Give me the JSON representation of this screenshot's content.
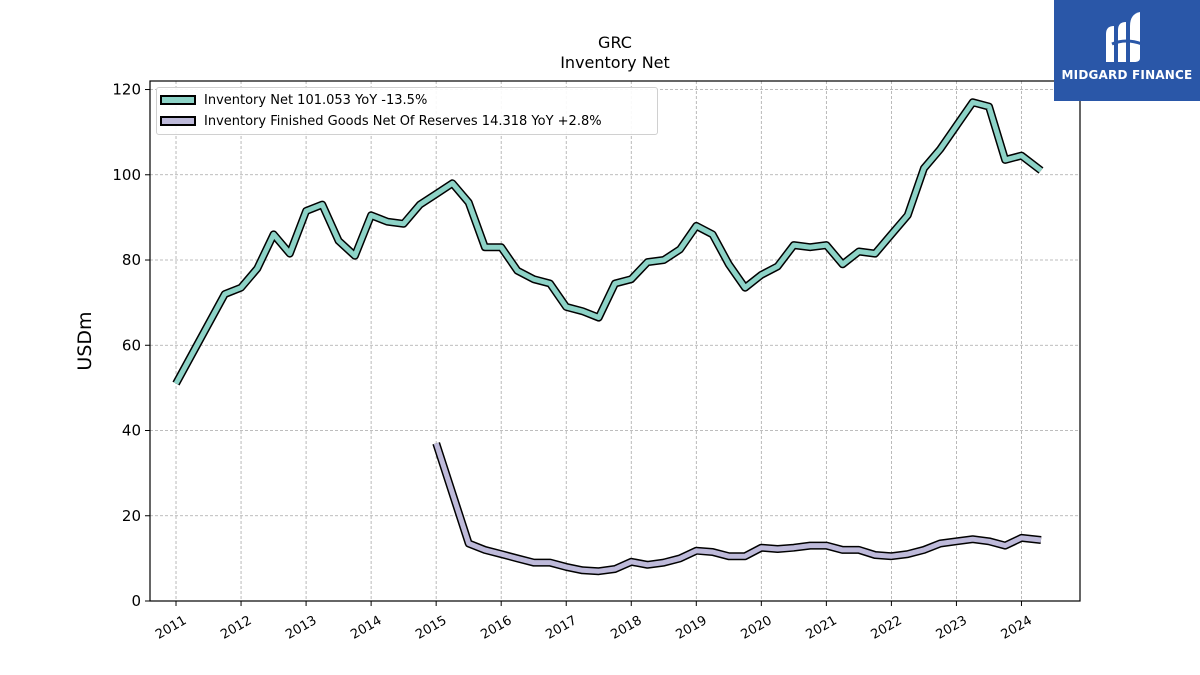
{
  "chart_data": {
    "type": "line",
    "title": "GRC",
    "subtitle": "Inventory Net",
    "ylabel": "USDm",
    "xlabel": "",
    "ylim": [
      0,
      122
    ],
    "yticks": [
      0,
      20,
      40,
      60,
      80,
      100,
      120
    ],
    "xlim": [
      2010.6,
      2024.9
    ],
    "xticks": [
      "2011",
      "2012",
      "2013",
      "2014",
      "2015",
      "2016",
      "2017",
      "2018",
      "2019",
      "2020",
      "2021",
      "2022",
      "2023",
      "2024"
    ],
    "grid": true,
    "legend_position": "top-left",
    "series": [
      {
        "name": "Inventory Net  101.053 YoY -13.5%",
        "color": "#8dd3c7",
        "x": [
          2011.0,
          2011.75,
          2012.0,
          2012.25,
          2012.5,
          2012.75,
          2013.0,
          2013.25,
          2013.5,
          2013.75,
          2014.0,
          2014.25,
          2014.5,
          2014.75,
          2015.0,
          2015.25,
          2015.5,
          2015.75,
          2016.0,
          2016.25,
          2016.5,
          2016.75,
          2017.0,
          2017.25,
          2017.5,
          2017.75,
          2018.0,
          2018.25,
          2018.5,
          2018.75,
          2019.0,
          2019.25,
          2019.5,
          2019.75,
          2020.0,
          2020.25,
          2020.5,
          2020.75,
          2021.0,
          2021.25,
          2021.5,
          2021.75,
          2022.0,
          2022.25,
          2022.5,
          2022.75,
          2023.0,
          2023.25,
          2023.5,
          2023.75,
          2024.0,
          2024.3
        ],
        "values": [
          51,
          72,
          73.5,
          78,
          86,
          81.5,
          91.5,
          93,
          84.5,
          81,
          90.5,
          89,
          88.5,
          93,
          95.5,
          98,
          93.5,
          83,
          83,
          77.5,
          75.5,
          74.5,
          69,
          68,
          66.5,
          74.5,
          75.5,
          79.5,
          80,
          82.5,
          88,
          86,
          79,
          73.5,
          76.5,
          78.5,
          83.5,
          83,
          83.5,
          79,
          82,
          81.5,
          86,
          90.5,
          101.5,
          106,
          111.5,
          117,
          116,
          103.5,
          104.5,
          101
        ]
      },
      {
        "name": "Inventory Finished Goods Net Of Reserves  14.318 YoY +2.8%",
        "color": "#bebada",
        "x": [
          2015.0,
          2015.5,
          2015.75,
          2016.0,
          2016.25,
          2016.5,
          2016.75,
          2017.0,
          2017.25,
          2017.5,
          2017.75,
          2018.0,
          2018.25,
          2018.5,
          2018.75,
          2019.0,
          2019.25,
          2019.5,
          2019.75,
          2020.0,
          2020.25,
          2020.5,
          2020.75,
          2021.0,
          2021.25,
          2021.5,
          2021.75,
          2022.0,
          2022.25,
          2022.5,
          2022.75,
          2023.0,
          2023.25,
          2023.5,
          2023.75,
          2024.0,
          2024.3
        ],
        "values": [
          37,
          13.5,
          12,
          11,
          10,
          9,
          9,
          8,
          7.2,
          7,
          7.5,
          9.2,
          8.5,
          9,
          10,
          11.8,
          11.5,
          10.5,
          10.5,
          12.5,
          12.2,
          12.5,
          13,
          13,
          12,
          12,
          10.8,
          10.5,
          11,
          12,
          13.5,
          14,
          14.5,
          14,
          13,
          14.8,
          14.3
        ]
      }
    ]
  },
  "logo": {
    "text": "MIDGARD FINANCE"
  }
}
